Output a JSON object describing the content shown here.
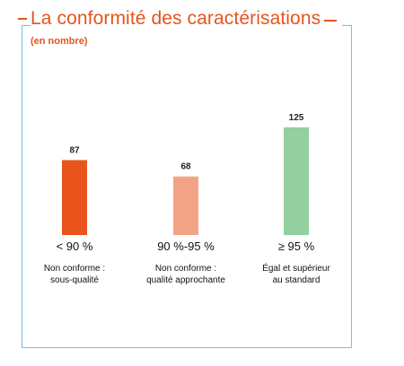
{
  "chart_data": {
    "type": "bar",
    "title": "La conformité des caractérisations",
    "subtitle": "(en nombre)",
    "categories": [
      "< 90 %",
      "90 %-95 %",
      "≥ 95 %"
    ],
    "descriptions": [
      [
        "Non conforme :",
        "sous-qualité"
      ],
      [
        "Non conforme :",
        "qualité approchante"
      ],
      [
        "Égal et supérieur",
        "au standard"
      ]
    ],
    "values": [
      87,
      68,
      125
    ],
    "colors": [
      "#e8541b",
      "#f4a486",
      "#93cfa0"
    ],
    "ylim": [
      0,
      125
    ]
  }
}
